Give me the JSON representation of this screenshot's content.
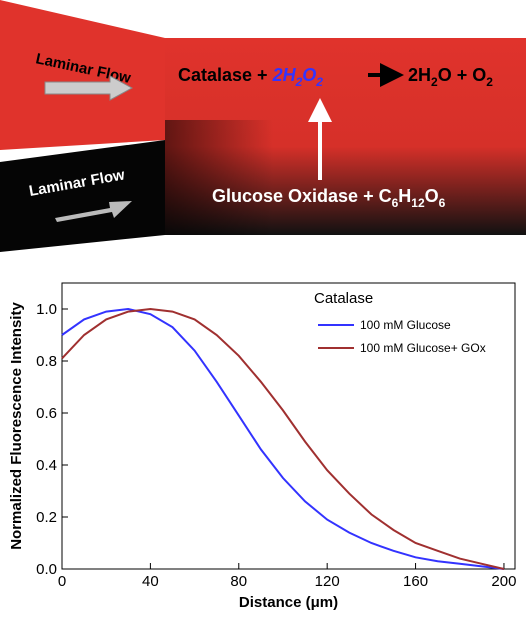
{
  "diagram": {
    "top_flow_label": "Laminar Flow",
    "bottom_flow_label": "Laminar Flow",
    "top_reaction": {
      "enzyme": "Catalase + ",
      "reactant": [
        "2H",
        "2",
        "O",
        "2"
      ],
      "products": [
        "2H",
        "2",
        "O + O",
        "2"
      ]
    },
    "bottom_reaction": [
      "Glucose Oxidase + C",
      "6",
      "H",
      "12",
      "O",
      "6"
    ]
  },
  "chart_data": {
    "type": "line",
    "x_label": "Distance (μm)",
    "y_label": "Normalized Fluorescence Intensity",
    "legend_title": "Catalase",
    "legend_position": "upper right",
    "x": [
      0,
      10,
      20,
      30,
      40,
      50,
      60,
      70,
      80,
      90,
      100,
      110,
      120,
      130,
      140,
      150,
      160,
      170,
      180,
      190,
      200
    ],
    "series": [
      {
        "name": "100 mM Glucose",
        "color": "#3333ff",
        "values": [
          0.9,
          0.96,
          0.99,
          1.0,
          0.98,
          0.93,
          0.84,
          0.72,
          0.59,
          0.46,
          0.35,
          0.26,
          0.19,
          0.14,
          0.1,
          0.07,
          0.045,
          0.03,
          0.02,
          0.01,
          0.0
        ]
      },
      {
        "name": "100 mM Glucose+ GOx",
        "color": "#a03030",
        "values": [
          0.81,
          0.9,
          0.96,
          0.99,
          1.0,
          0.99,
          0.96,
          0.9,
          0.82,
          0.72,
          0.61,
          0.49,
          0.38,
          0.29,
          0.21,
          0.15,
          0.1,
          0.07,
          0.04,
          0.02,
          0.0
        ]
      }
    ],
    "xlim": [
      0,
      205
    ],
    "xticks": [
      0,
      40,
      80,
      120,
      160,
      200
    ],
    "ylim": [
      0,
      1.1
    ],
    "yticks": [
      {
        "value": 0,
        "label": "0.0"
      },
      {
        "value": 0.2,
        "label": "0.2"
      },
      {
        "value": 0.4,
        "label": "0.4"
      },
      {
        "value": 0.6,
        "label": "0.6"
      },
      {
        "value": 0.8,
        "label": "0.8"
      },
      {
        "value": 1.0,
        "label": "1.0"
      }
    ]
  }
}
